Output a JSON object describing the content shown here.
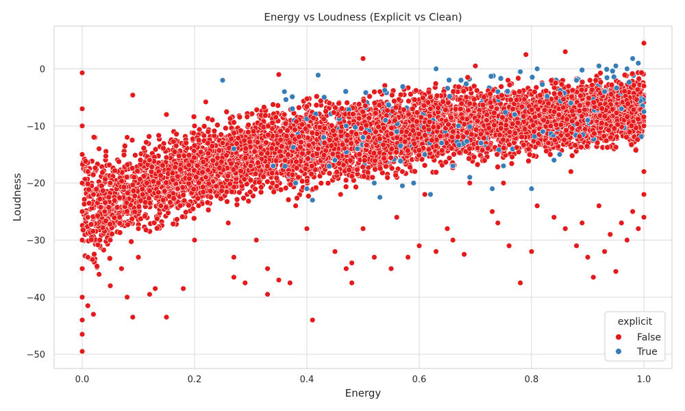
{
  "chart_data": {
    "type": "scatter",
    "title": "Energy vs Loudness (Explicit vs Clean)",
    "xlabel": "Energy",
    "ylabel": "Loudness",
    "xlim": [
      -0.05,
      1.05
    ],
    "ylim": [
      -52.5,
      7.5
    ],
    "xticks": [
      0.0,
      0.2,
      0.4,
      0.6,
      0.8,
      1.0
    ],
    "xtick_labels": [
      "0.0",
      "0.2",
      "0.4",
      "0.6",
      "0.8",
      "1.0"
    ],
    "yticks": [
      -50,
      -40,
      -30,
      -20,
      -10,
      0
    ],
    "ytick_labels": [
      "−50",
      "−40",
      "−30",
      "−20",
      "−10",
      "0"
    ],
    "grid": true,
    "legend": {
      "title": "explicit",
      "position": "lower-right",
      "entries": [
        {
          "label": "False",
          "color": "#e41a1c"
        },
        {
          "label": "True",
          "color": "#377eb8"
        }
      ]
    },
    "series": [
      {
        "name": "False",
        "color": "#e41a1c",
        "points": [
          [
            0.0,
            -0.7
          ],
          [
            0.0,
            -7.0
          ],
          [
            0.0,
            -10.0
          ],
          [
            0.0,
            -15.0
          ],
          [
            0.0,
            -20.0
          ],
          [
            0.0,
            -25.0
          ],
          [
            0.0,
            -30.0
          ],
          [
            0.0,
            -35.0
          ],
          [
            0.0,
            -40.0
          ],
          [
            0.0,
            -44.0
          ],
          [
            0.0,
            -46.5
          ],
          [
            0.0,
            -49.5
          ],
          [
            0.01,
            -18.0
          ],
          [
            0.01,
            -26.0
          ],
          [
            0.01,
            -33.0
          ],
          [
            0.01,
            -41.5
          ],
          [
            0.02,
            -43.0
          ],
          [
            0.02,
            -22.0
          ],
          [
            0.03,
            -36.0
          ],
          [
            0.03,
            -14.0
          ],
          [
            0.04,
            -25.0
          ],
          [
            0.05,
            -30.0
          ],
          [
            0.05,
            -38.0
          ],
          [
            0.05,
            -20.0
          ],
          [
            0.07,
            -35.0
          ],
          [
            0.08,
            -40.0
          ],
          [
            0.08,
            -12.0
          ],
          [
            0.09,
            -4.6
          ],
          [
            0.09,
            -43.5
          ],
          [
            0.1,
            -28.0
          ],
          [
            0.1,
            -33.0
          ],
          [
            0.12,
            -39.5
          ],
          [
            0.12,
            -16.0
          ],
          [
            0.13,
            -38.5
          ],
          [
            0.14,
            -24.0
          ],
          [
            0.15,
            -43.5
          ],
          [
            0.15,
            -8.0
          ],
          [
            0.17,
            -21.0
          ],
          [
            0.18,
            -38.5
          ],
          [
            0.2,
            -30.0
          ],
          [
            0.2,
            -10.0
          ],
          [
            0.22,
            -5.8
          ],
          [
            0.22,
            -19.0
          ],
          [
            0.25,
            -13.0
          ],
          [
            0.26,
            -27.0
          ],
          [
            0.27,
            -33.0
          ],
          [
            0.27,
            -36.5
          ],
          [
            0.29,
            -37.5
          ],
          [
            0.3,
            -17.0
          ],
          [
            0.31,
            -30.0
          ],
          [
            0.33,
            -35.0
          ],
          [
            0.33,
            -39.5
          ],
          [
            0.35,
            -37.0
          ],
          [
            0.35,
            -1.0
          ],
          [
            0.36,
            -8.0
          ],
          [
            0.37,
            -37.5
          ],
          [
            0.38,
            -24.0
          ],
          [
            0.4,
            -28.0
          ],
          [
            0.41,
            -44.0
          ],
          [
            0.42,
            -14.0
          ],
          [
            0.44,
            -6.0
          ],
          [
            0.45,
            -32.0
          ],
          [
            0.46,
            -22.0
          ],
          [
            0.47,
            -35.0
          ],
          [
            0.48,
            -37.5
          ],
          [
            0.48,
            -34.0
          ],
          [
            0.5,
            1.8
          ],
          [
            0.5,
            -28.0
          ],
          [
            0.51,
            -12.0
          ],
          [
            0.52,
            -33.0
          ],
          [
            0.53,
            -4.0
          ],
          [
            0.55,
            -35.0
          ],
          [
            0.56,
            -26.0
          ],
          [
            0.57,
            -18.0
          ],
          [
            0.58,
            -33.0
          ],
          [
            0.6,
            -31.0
          ],
          [
            0.61,
            -22.0
          ],
          [
            0.62,
            -7.0
          ],
          [
            0.63,
            -32.0
          ],
          [
            0.65,
            -28.0
          ],
          [
            0.66,
            -30.0
          ],
          [
            0.68,
            -32.5
          ],
          [
            0.69,
            -20.0
          ],
          [
            0.7,
            0.5
          ],
          [
            0.72,
            -9.0
          ],
          [
            0.73,
            -25.0
          ],
          [
            0.74,
            -27.0
          ],
          [
            0.75,
            -20.0
          ],
          [
            0.76,
            -31.0
          ],
          [
            0.78,
            -37.5
          ],
          [
            0.79,
            2.5
          ],
          [
            0.8,
            -32.0
          ],
          [
            0.81,
            -24.0
          ],
          [
            0.83,
            -13.0
          ],
          [
            0.84,
            -26.0
          ],
          [
            0.86,
            -28.0
          ],
          [
            0.86,
            3.0
          ],
          [
            0.87,
            -18.0
          ],
          [
            0.88,
            -31.0
          ],
          [
            0.89,
            -27.0
          ],
          [
            0.9,
            -33.0
          ],
          [
            0.91,
            -36.5
          ],
          [
            0.92,
            -24.0
          ],
          [
            0.93,
            -32.0
          ],
          [
            0.94,
            -29.0
          ],
          [
            0.95,
            -35.5
          ],
          [
            0.96,
            -27.0
          ],
          [
            0.97,
            -30.0
          ],
          [
            0.98,
            -25.0
          ],
          [
            0.99,
            -28.0
          ],
          [
            1.0,
            4.5
          ],
          [
            1.0,
            -3.0
          ],
          [
            1.0,
            -10.0
          ],
          [
            1.0,
            -18.0
          ],
          [
            1.0,
            -22.0
          ],
          [
            1.0,
            -26.0
          ]
        ]
      },
      {
        "name": "True",
        "color": "#377eb8",
        "points": [
          [
            0.25,
            -2.0
          ],
          [
            0.27,
            -14.0
          ],
          [
            0.34,
            -17.0
          ],
          [
            0.36,
            -4.0
          ],
          [
            0.38,
            -20.0
          ],
          [
            0.4,
            -21.0
          ],
          [
            0.41,
            -23.0
          ],
          [
            0.42,
            -1.1
          ],
          [
            0.43,
            -12.0
          ],
          [
            0.45,
            -16.0
          ],
          [
            0.47,
            -10.0
          ],
          [
            0.49,
            -14.0
          ],
          [
            0.5,
            -12.0
          ],
          [
            0.52,
            -20.0
          ],
          [
            0.53,
            -22.5
          ],
          [
            0.54,
            -9.0
          ],
          [
            0.56,
            -11.0
          ],
          [
            0.57,
            -20.5
          ],
          [
            0.59,
            -20.0
          ],
          [
            0.61,
            -15.0
          ],
          [
            0.62,
            -22.0
          ],
          [
            0.63,
            0.0
          ],
          [
            0.64,
            -13.0
          ],
          [
            0.66,
            -17.0
          ],
          [
            0.67,
            -10.0
          ],
          [
            0.69,
            -19.0
          ],
          [
            0.71,
            -13.0
          ],
          [
            0.73,
            -21.0
          ],
          [
            0.74,
            -4.0
          ],
          [
            0.75,
            -17.0
          ],
          [
            0.77,
            -8.0
          ],
          [
            0.78,
            -0.5
          ],
          [
            0.8,
            -21.0
          ],
          [
            0.81,
            0.0
          ],
          [
            0.82,
            -11.0
          ],
          [
            0.84,
            -16.0
          ],
          [
            0.85,
            -15.0
          ],
          [
            0.87,
            -6.0
          ],
          [
            0.88,
            -2.0
          ],
          [
            0.9,
            -9.0
          ],
          [
            0.92,
            0.5
          ],
          [
            0.93,
            -4.0
          ],
          [
            0.95,
            0.5
          ],
          [
            0.96,
            -7.0
          ],
          [
            0.97,
            0.0
          ],
          [
            0.98,
            1.8
          ],
          [
            0.99,
            1.0
          ],
          [
            1.0,
            -7.5
          ]
        ]
      }
    ],
    "dense_band": {
      "series_name": "False",
      "description_color": "#e41a1c",
      "envelope": [
        {
          "x": 0.0,
          "lo": -40.0,
          "hi": -8.0
        },
        {
          "x": 0.05,
          "lo": -34.0,
          "hi": -13.0
        },
        {
          "x": 0.1,
          "lo": -32.0,
          "hi": -11.0
        },
        {
          "x": 0.15,
          "lo": -30.0,
          "hi": -9.5
        },
        {
          "x": 0.2,
          "lo": -28.0,
          "hi": -8.0
        },
        {
          "x": 0.25,
          "lo": -27.0,
          "hi": -6.5
        },
        {
          "x": 0.3,
          "lo": -25.0,
          "hi": -5.0
        },
        {
          "x": 0.35,
          "lo": -24.0,
          "hi": -4.5
        },
        {
          "x": 0.4,
          "lo": -23.0,
          "hi": -4.0
        },
        {
          "x": 0.45,
          "lo": -22.0,
          "hi": -3.5
        },
        {
          "x": 0.5,
          "lo": -21.0,
          "hi": -3.0
        },
        {
          "x": 0.55,
          "lo": -20.0,
          "hi": -2.5
        },
        {
          "x": 0.6,
          "lo": -19.0,
          "hi": -2.0
        },
        {
          "x": 0.65,
          "lo": -18.5,
          "hi": -1.5
        },
        {
          "x": 0.7,
          "lo": -18.0,
          "hi": -1.0
        },
        {
          "x": 0.75,
          "lo": -17.5,
          "hi": -1.0
        },
        {
          "x": 0.8,
          "lo": -17.0,
          "hi": -0.5
        },
        {
          "x": 0.85,
          "lo": -16.5,
          "hi": -0.5
        },
        {
          "x": 0.9,
          "lo": -16.0,
          "hi": 0.0
        },
        {
          "x": 0.95,
          "lo": -15.5,
          "hi": 0.5
        },
        {
          "x": 1.0,
          "lo": -15.0,
          "hi": 0.5
        }
      ]
    }
  }
}
